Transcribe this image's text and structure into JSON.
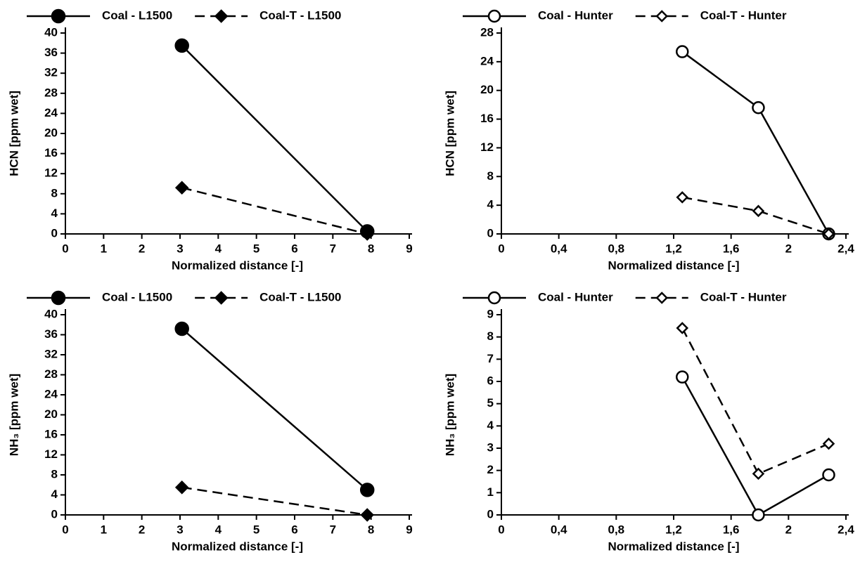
{
  "chart_data": [
    {
      "type": "line",
      "xlabel": "Normalized distance [-]",
      "ylabel": "HCN [ppm wet]",
      "x": [
        3.05,
        7.9
      ],
      "series": [
        {
          "name": "Coal - L1500",
          "color": "#000000",
          "marker": "circle",
          "fill": "filled",
          "linestyle": "solid",
          "values": [
            37.5,
            0.5
          ]
        },
        {
          "name": "Coal-T - L1500",
          "color": "#000000",
          "marker": "diamond",
          "fill": "filled",
          "linestyle": "dashed",
          "values": [
            9.2,
            0
          ]
        }
      ],
      "xlim": [
        0,
        9
      ],
      "xticks": [
        0,
        1,
        2,
        3,
        4,
        5,
        6,
        7,
        8,
        9
      ],
      "ylim": [
        0,
        40
      ],
      "yticks": [
        0,
        4,
        8,
        12,
        16,
        20,
        24,
        28,
        32,
        36,
        40
      ],
      "legend": "top"
    },
    {
      "type": "line",
      "xlabel": "Normalized distance [-]",
      "ylabel": "HCN [ppm wet]",
      "x": [
        1.26,
        1.79,
        2.28
      ],
      "series": [
        {
          "name": "Coal - Hunter",
          "color": "#000000",
          "marker": "circle",
          "fill": "open",
          "linestyle": "solid",
          "values": [
            25.4,
            17.6,
            0
          ]
        },
        {
          "name": "Coal-T - Hunter",
          "color": "#000000",
          "marker": "diamond",
          "fill": "open",
          "linestyle": "dashed",
          "values": [
            5.1,
            3.2,
            0
          ]
        }
      ],
      "xlim": [
        0,
        2.4
      ],
      "xticks": [
        0,
        {
          "value": 0.4,
          "label": "0,4"
        },
        {
          "value": 0.8,
          "label": "0,8"
        },
        {
          "value": 1.2,
          "label": "1,2"
        },
        {
          "value": 1.6,
          "label": "1,6"
        },
        2,
        {
          "value": 2.4,
          "label": "2,4"
        }
      ],
      "ylim": [
        0,
        28
      ],
      "yticks": [
        0,
        4,
        8,
        12,
        16,
        20,
        24,
        28
      ],
      "legend": "top"
    },
    {
      "type": "line",
      "xlabel": "Normalized distance [-]",
      "ylabel": "NH₃ [ppm wet]",
      "x": [
        3.05,
        7.9
      ],
      "series": [
        {
          "name": "Coal - L1500",
          "color": "#000000",
          "marker": "circle",
          "fill": "filled",
          "linestyle": "solid",
          "values": [
            37.2,
            5.0
          ]
        },
        {
          "name": "Coal-T - L1500",
          "color": "#000000",
          "marker": "diamond",
          "fill": "filled",
          "linestyle": "dashed",
          "values": [
            5.5,
            0
          ]
        }
      ],
      "xlim": [
        0,
        9
      ],
      "xticks": [
        0,
        1,
        2,
        3,
        4,
        5,
        6,
        7,
        8,
        9
      ],
      "ylim": [
        0,
        40
      ],
      "yticks": [
        0,
        4,
        8,
        12,
        16,
        20,
        24,
        28,
        32,
        36,
        40
      ],
      "legend": "top"
    },
    {
      "type": "line",
      "xlabel": "Normalized distance [-]",
      "ylabel": "NH₃ [ppm wet]",
      "x": [
        1.26,
        1.79,
        2.28
      ],
      "series": [
        {
          "name": "Coal - Hunter",
          "color": "#000000",
          "marker": "circle",
          "fill": "open",
          "linestyle": "solid",
          "values": [
            6.2,
            0,
            1.8
          ]
        },
        {
          "name": "Coal-T - Hunter",
          "color": "#000000",
          "marker": "diamond",
          "fill": "open",
          "linestyle": "dashed",
          "values": [
            8.4,
            1.85,
            3.2
          ]
        }
      ],
      "xlim": [
        0,
        2.4
      ],
      "xticks": [
        0,
        {
          "value": 0.4,
          "label": "0,4"
        },
        {
          "value": 0.8,
          "label": "0,8"
        },
        {
          "value": 1.2,
          "label": "1,2"
        },
        {
          "value": 1.6,
          "label": "1,6"
        },
        2,
        {
          "value": 2.4,
          "label": "2,4"
        }
      ],
      "ylim": [
        0,
        9
      ],
      "yticks": [
        0,
        1,
        2,
        3,
        4,
        5,
        6,
        7,
        8,
        9
      ],
      "legend": "top"
    }
  ]
}
